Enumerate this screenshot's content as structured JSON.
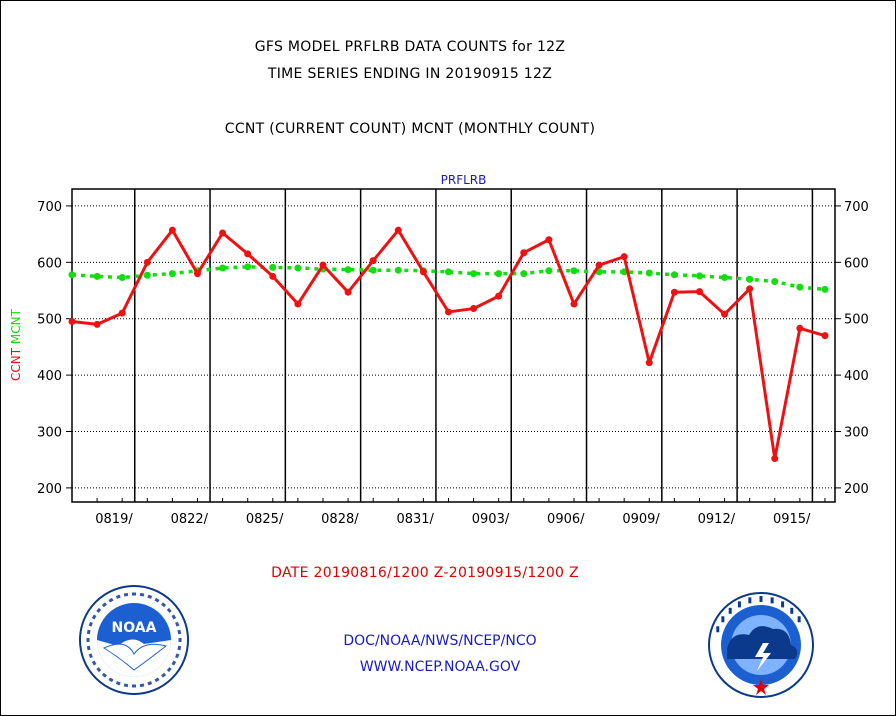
{
  "titles": {
    "line1": "GFS MODEL PRFLRB DATA COUNTS for 12Z",
    "line2": "TIME SERIES ENDING IN 20190915 12Z",
    "line3": "CCNT (CURRENT COUNT) MCNT (MONTHLY COUNT)"
  },
  "footer": {
    "date_range": "DATE 20190816/1200 Z-20190915/1200 Z",
    "org": "DOC/NOAA/NWS/NCEP/NCO",
    "url": "WWW.NCEP.NOAA.GOV"
  },
  "logos": {
    "left": {
      "name": "noaa-logo",
      "text": "NOAA"
    },
    "right": {
      "name": "nws-logo"
    }
  },
  "colors": {
    "ccnt": "#ee1111",
    "mcnt": "#11dd11",
    "label": "#1a1acc",
    "grid": "#000000"
  },
  "chart_data": {
    "type": "line",
    "title": "PRFLRB",
    "ylabel_parts": [
      {
        "text": "CCNT",
        "color": "#ee1111"
      },
      {
        "text": "MCNT",
        "color": "#11dd11"
      }
    ],
    "ylim": [
      175,
      730
    ],
    "yticks": [
      200,
      300,
      400,
      500,
      600,
      700
    ],
    "x_start": "0816",
    "xlim_days": [
      0,
      30.4
    ],
    "xtick_labels": [
      "0819/",
      "0822/",
      "0825/",
      "0828/",
      "0831/",
      "0903/",
      "0906/",
      "0909/",
      "0912/",
      "0915/"
    ],
    "xtick_days": [
      2.5,
      5.5,
      8.5,
      11.5,
      14.5,
      17.5,
      20.5,
      23.5,
      26.5,
      29.5
    ],
    "series": [
      {
        "name": "CCNT",
        "color": "#ee1111",
        "values": [
          495,
          490,
          510,
          600,
          657,
          580,
          652,
          615,
          575,
          526,
          595,
          547,
          603,
          657,
          583,
          512,
          518,
          540,
          617,
          640,
          526,
          595,
          610,
          422,
          547,
          548,
          508,
          553,
          252,
          483,
          470
        ]
      },
      {
        "name": "MCNT",
        "color": "#11dd11",
        "values": [
          578,
          575,
          573,
          577,
          580,
          585,
          590,
          592,
          591,
          590,
          588,
          587,
          586,
          586,
          585,
          583,
          580,
          580,
          580,
          585,
          585,
          583,
          583,
          581,
          578,
          576,
          573,
          570,
          566,
          556,
          552
        ]
      }
    ]
  }
}
